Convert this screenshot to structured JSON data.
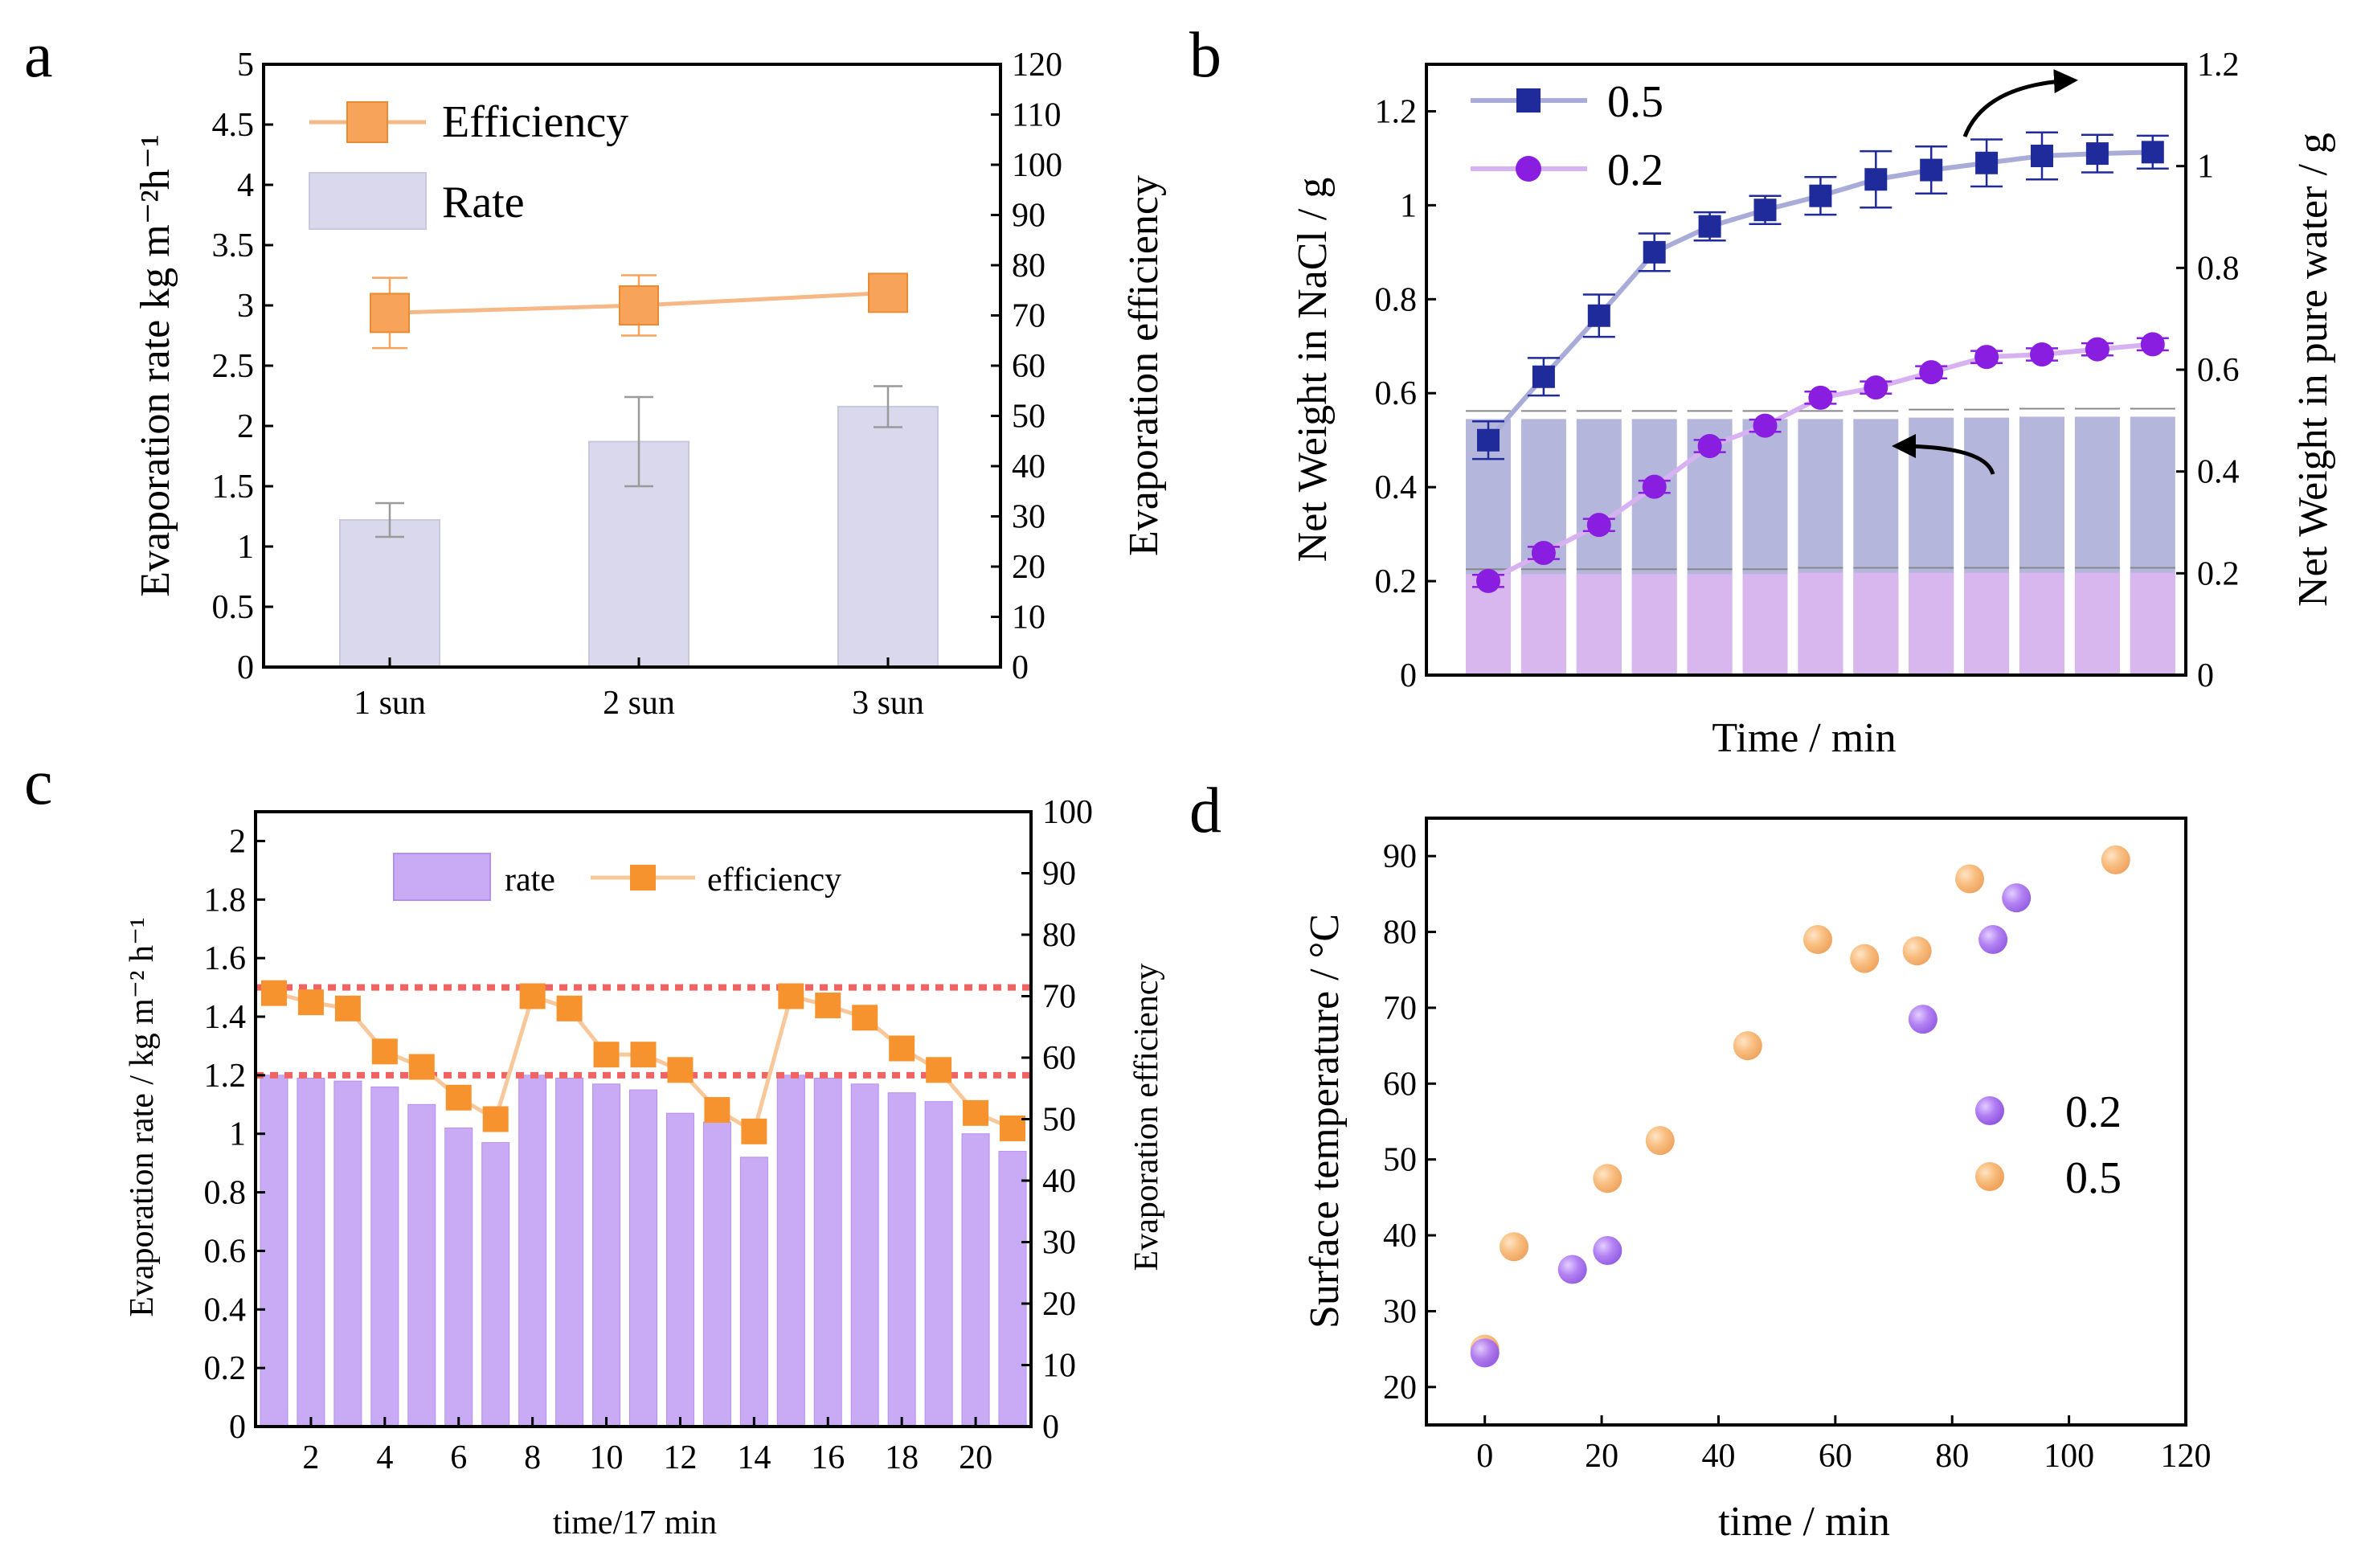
{
  "chart_data": [
    {
      "panel": "a",
      "type": "bar",
      "categories": [
        "1 sun",
        "2 sun",
        "3 sun"
      ],
      "ylabel": "Evaporation rate kg m⁻²h⁻¹",
      "y2label": "Evaporation efficiency",
      "ylim": [
        0,
        5
      ],
      "y2lim": [
        0,
        120
      ],
      "yticks": [
        "0",
        "0.5",
        "1",
        "1.5",
        "2",
        "2.5",
        "3",
        "3.5",
        "4",
        "4.5",
        "5"
      ],
      "y2ticks": [
        "0",
        "10",
        "20",
        "30",
        "40",
        "50",
        "60",
        "70",
        "80",
        "90",
        "100",
        "110",
        "120"
      ],
      "legend": [
        "Efficiency",
        "Rate"
      ],
      "series": [
        {
          "name": "Rate",
          "axis": "left",
          "kind": "bar",
          "color": "#d9d8ec",
          "values": [
            1.22,
            1.87,
            2.16
          ],
          "errors": [
            0.14,
            0.37,
            0.17
          ]
        },
        {
          "name": "Efficiency",
          "axis": "right",
          "kind": "line",
          "color": "#f7a45a",
          "values": [
            70.5,
            72,
            74.5
          ],
          "errors": [
            7,
            6,
            2.5
          ]
        }
      ]
    },
    {
      "panel": "b",
      "type": "line",
      "xlabel": "Time / min",
      "ylabel": "Net Weight in NaCl / g",
      "y2label": "Net Weight in pure water / g",
      "ylim": [
        0,
        1.3
      ],
      "y2lim": [
        0,
        1.2
      ],
      "yticks": [
        "0",
        "0.2",
        "0.4",
        "0.6",
        "0.8",
        "1",
        "1.2"
      ],
      "y2ticks": [
        "0",
        "0.2",
        "0.4",
        "0.6",
        "0.8",
        "1",
        "1.2"
      ],
      "legend": [
        "0.5",
        "0.2"
      ],
      "series": [
        {
          "name": "0.5",
          "axis": "left",
          "kind": "line",
          "color": "#1f2a9b",
          "values": [
            0.5,
            0.635,
            0.765,
            0.9,
            0.955,
            0.99,
            1.02,
            1.055,
            1.075,
            1.09,
            1.105,
            1.11,
            1.113
          ],
          "errors": [
            0.04,
            0.04,
            0.045,
            0.04,
            0.03,
            0.03,
            0.04,
            0.06,
            0.05,
            0.05,
            0.05,
            0.04,
            0.035
          ]
        },
        {
          "name": "0.2",
          "axis": "right",
          "kind": "line",
          "color": "#8a1ee0",
          "values": [
            0.185,
            0.24,
            0.295,
            0.37,
            0.45,
            0.49,
            0.545,
            0.565,
            0.595,
            0.625,
            0.63,
            0.64,
            0.65
          ],
          "errors": [
            0.012,
            0.012,
            0.012,
            0.012,
            0.012,
            0.012,
            0.012,
            0.012,
            0.012,
            0.012,
            0.012,
            0.012,
            0.012
          ]
        },
        {
          "name": "bars-0.5",
          "axis": "left",
          "kind": "bar",
          "color": "#a7a9d6",
          "values": [
            0.545,
            0.545,
            0.545,
            0.545,
            0.545,
            0.545,
            0.545,
            0.545,
            0.548,
            0.548,
            0.55,
            0.55,
            0.55
          ]
        },
        {
          "name": "bars-0.2",
          "axis": "left",
          "kind": "bar",
          "color": "#d8b7ef",
          "values": [
            0.215,
            0.215,
            0.215,
            0.215,
            0.215,
            0.215,
            0.218,
            0.218,
            0.218,
            0.218,
            0.218,
            0.218,
            0.218
          ]
        }
      ],
      "annotations": [
        "arrow toward right axis",
        "arrow toward left axis"
      ]
    },
    {
      "panel": "c",
      "type": "bar",
      "xlabel": "time/17 min",
      "ylabel": "Evaporation rate / kg m⁻² h⁻¹",
      "y2label": "Evaporation efficiency",
      "ylim": [
        0,
        2.1
      ],
      "y2lim": [
        0,
        100
      ],
      "xlim": [
        0.5,
        21.5
      ],
      "xticks": [
        "2",
        "4",
        "6",
        "8",
        "10",
        "12",
        "14",
        "16",
        "18",
        "20"
      ],
      "yticks": [
        "0",
        "0.2",
        "0.4",
        "0.6",
        "0.8",
        "1",
        "1.2",
        "1.4",
        "1.6",
        "1.8",
        "2"
      ],
      "y2ticks": [
        "0",
        "10",
        "20",
        "30",
        "40",
        "50",
        "60",
        "70",
        "80",
        "90",
        "100"
      ],
      "legend": [
        "rate",
        "efficiency"
      ],
      "series": [
        {
          "name": "rate",
          "axis": "left",
          "kind": "bar",
          "color": "#c9aaf4",
          "x": [
            1,
            2,
            3,
            4,
            5,
            6,
            7,
            8,
            9,
            10,
            11,
            12,
            13,
            14,
            15,
            16,
            17,
            18,
            19,
            20,
            21
          ],
          "values": [
            1.2,
            1.19,
            1.18,
            1.16,
            1.1,
            1.02,
            0.97,
            1.2,
            1.19,
            1.17,
            1.15,
            1.07,
            1.04,
            0.92,
            1.2,
            1.19,
            1.17,
            1.14,
            1.11,
            1.0,
            0.94
          ]
        },
        {
          "name": "efficiency",
          "axis": "right",
          "kind": "line",
          "color": "#f7932e",
          "x": [
            1,
            2,
            3,
            4,
            5,
            6,
            7,
            8,
            9,
            10,
            11,
            12,
            13,
            14,
            15,
            16,
            17,
            18,
            19,
            20,
            21
          ],
          "values": [
            70.5,
            69,
            68,
            61,
            58.5,
            53.5,
            50,
            70,
            68,
            60.5,
            60.5,
            58,
            51.5,
            48,
            70,
            68.5,
            66.5,
            61.5,
            58,
            51,
            48.5
          ]
        }
      ],
      "reference_lines_left_axis": [
        1.5,
        1.2
      ]
    },
    {
      "panel": "d",
      "type": "scatter",
      "xlabel": "time / min",
      "ylabel": "Surface temperature / °C",
      "xlim": [
        -10,
        120
      ],
      "ylim": [
        15,
        95
      ],
      "xticks": [
        "0",
        "20",
        "40",
        "60",
        "80",
        "100",
        "120"
      ],
      "yticks": [
        "20",
        "30",
        "40",
        "50",
        "60",
        "70",
        "80",
        "90"
      ],
      "legend": [
        "0.2",
        "0.5"
      ],
      "series": [
        {
          "name": "0.2",
          "color": "#a66ef0",
          "x": [
            0,
            15,
            21,
            75,
            87,
            91
          ],
          "y": [
            24.5,
            35.5,
            38,
            68.5,
            79,
            84.5
          ]
        },
        {
          "name": "0.5",
          "color": "#f7b46e",
          "x": [
            0,
            5,
            21,
            30,
            45,
            57,
            65,
            74,
            83,
            108
          ],
          "y": [
            25,
            38.5,
            47.5,
            52.5,
            65,
            79,
            76.5,
            77.5,
            87,
            89.5
          ]
        }
      ]
    }
  ],
  "panels": {
    "a": {
      "letter": "a",
      "xlabels": [
        "1 sun",
        "2 sun",
        "3 sun"
      ]
    },
    "b": {
      "letter": "b"
    },
    "c": {
      "letter": "c"
    },
    "d": {
      "letter": "d"
    }
  }
}
